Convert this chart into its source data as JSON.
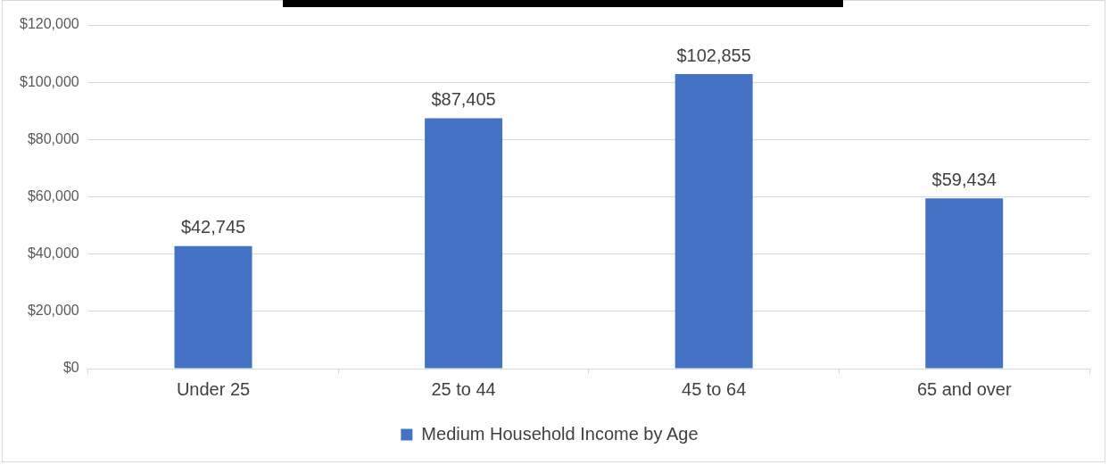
{
  "chart_data": {
    "type": "bar",
    "categories": [
      "Under 25",
      "25 to 44",
      "45 to 64",
      "65 and over"
    ],
    "series": [
      {
        "name": "Medium Household Income by Age",
        "color": "#4472c4",
        "values": [
          42745,
          87405,
          102855,
          59434
        ],
        "value_labels": [
          "$42,745",
          "$87,405",
          "$102,855",
          "$59,434"
        ]
      }
    ],
    "ylim": [
      0,
      120000
    ],
    "yticks": [
      {
        "value": 0,
        "label": "$0"
      },
      {
        "value": 20000,
        "label": "$20,000"
      },
      {
        "value": 40000,
        "label": "$40,000"
      },
      {
        "value": 60000,
        "label": "$60,000"
      },
      {
        "value": 80000,
        "label": "$80,000"
      },
      {
        "value": 100000,
        "label": "$100,000"
      },
      {
        "value": 120000,
        "label": "$120,000"
      }
    ],
    "grid": "y",
    "legend": "bottom"
  }
}
